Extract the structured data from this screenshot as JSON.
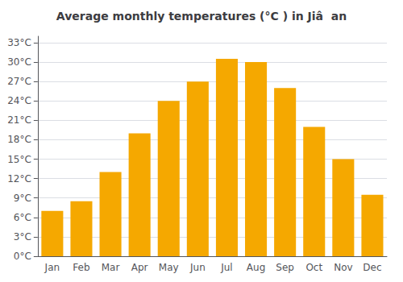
{
  "chart_data": {
    "type": "bar",
    "title": "Average monthly temperatures (°C ) in Jiâ  an",
    "categories": [
      "Jan",
      "Feb",
      "Mar",
      "Apr",
      "May",
      "Jun",
      "Jul",
      "Aug",
      "Sep",
      "Oct",
      "Nov",
      "Dec"
    ],
    "values": [
      7,
      8.5,
      13,
      19,
      24,
      27,
      30.5,
      30,
      26,
      20,
      15,
      9.5
    ],
    "color": "#F5A800",
    "ylim": [
      0,
      34
    ],
    "yticks": [
      {
        "value": 0,
        "label": "0°C"
      },
      {
        "value": 3,
        "label": "3°C"
      },
      {
        "value": 6,
        "label": "6°C"
      },
      {
        "value": 9,
        "label": "9°C"
      },
      {
        "value": 12,
        "label": "12°C"
      },
      {
        "value": 15,
        "label": "15°C"
      },
      {
        "value": 18,
        "label": "18°C"
      },
      {
        "value": 21,
        "label": "21°C"
      },
      {
        "value": 24,
        "label": "24°C"
      },
      {
        "value": 27,
        "label": "27°C"
      },
      {
        "value": 30,
        "label": "30°C"
      },
      {
        "value": 33,
        "label": "33°C"
      }
    ],
    "grid": true
  }
}
